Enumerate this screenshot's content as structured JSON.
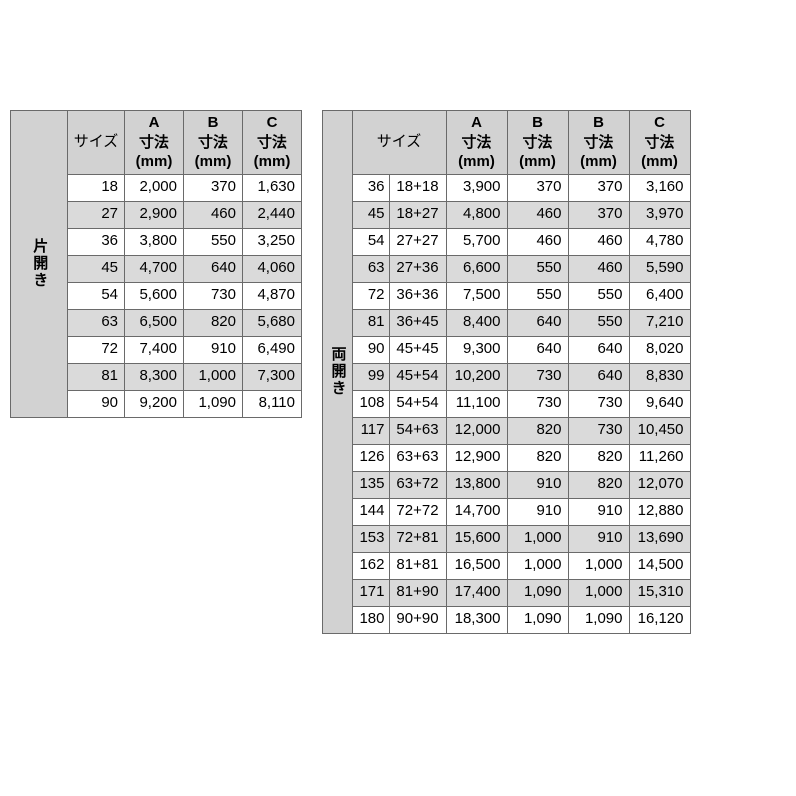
{
  "label_left": "片開き",
  "label_right": "両開き",
  "headers": {
    "size": "サイズ",
    "a": "A 寸法 (mm)",
    "b": "B 寸法 (mm)",
    "c": "C 寸法 (mm)"
  },
  "colors": {
    "border": "#6a6a6a",
    "header_bg": "#d2d2d2",
    "row_odd_bg": "#ffffff",
    "row_even_bg": "#dadada",
    "page_bg": "#ffffff",
    "text_color": "#222222"
  },
  "font": {
    "family": "Hiragino Kaku Gothic Pro / Meiryo",
    "size_pt": 11
  },
  "left_table": {
    "columns": [
      "サイズ",
      "A 寸法 (mm)",
      "B 寸法 (mm)",
      "C 寸法 (mm)"
    ],
    "rows": [
      {
        "size": "18",
        "a": "2,000",
        "b": "370",
        "c": "1,630"
      },
      {
        "size": "27",
        "a": "2,900",
        "b": "460",
        "c": "2,440"
      },
      {
        "size": "36",
        "a": "3,800",
        "b": "550",
        "c": "3,250"
      },
      {
        "size": "45",
        "a": "4,700",
        "b": "640",
        "c": "4,060"
      },
      {
        "size": "54",
        "a": "5,600",
        "b": "730",
        "c": "4,870"
      },
      {
        "size": "63",
        "a": "6,500",
        "b": "820",
        "c": "5,680"
      },
      {
        "size": "72",
        "a": "7,400",
        "b": "910",
        "c": "6,490"
      },
      {
        "size": "81",
        "a": "8,300",
        "b": "1,000",
        "c": "7,300"
      },
      {
        "size": "90",
        "a": "9,200",
        "b": "1,090",
        "c": "8,110"
      }
    ]
  },
  "right_table": {
    "columns": [
      "サイズ",
      "A 寸法 (mm)",
      "B 寸法 (mm)",
      "B 寸法 (mm)",
      "C 寸法 (mm)"
    ],
    "rows": [
      {
        "size": "36",
        "combo": "18+18",
        "a": "3,900",
        "b1": "370",
        "b2": "370",
        "c": "3,160"
      },
      {
        "size": "45",
        "combo": "18+27",
        "a": "4,800",
        "b1": "460",
        "b2": "370",
        "c": "3,970"
      },
      {
        "size": "54",
        "combo": "27+27",
        "a": "5,700",
        "b1": "460",
        "b2": "460",
        "c": "4,780"
      },
      {
        "size": "63",
        "combo": "27+36",
        "a": "6,600",
        "b1": "550",
        "b2": "460",
        "c": "5,590"
      },
      {
        "size": "72",
        "combo": "36+36",
        "a": "7,500",
        "b1": "550",
        "b2": "550",
        "c": "6,400"
      },
      {
        "size": "81",
        "combo": "36+45",
        "a": "8,400",
        "b1": "640",
        "b2": "550",
        "c": "7,210"
      },
      {
        "size": "90",
        "combo": "45+45",
        "a": "9,300",
        "b1": "640",
        "b2": "640",
        "c": "8,020"
      },
      {
        "size": "99",
        "combo": "45+54",
        "a": "10,200",
        "b1": "730",
        "b2": "640",
        "c": "8,830"
      },
      {
        "size": "108",
        "combo": "54+54",
        "a": "11,100",
        "b1": "730",
        "b2": "730",
        "c": "9,640"
      },
      {
        "size": "117",
        "combo": "54+63",
        "a": "12,000",
        "b1": "820",
        "b2": "730",
        "c": "10,450"
      },
      {
        "size": "126",
        "combo": "63+63",
        "a": "12,900",
        "b1": "820",
        "b2": "820",
        "c": "11,260"
      },
      {
        "size": "135",
        "combo": "63+72",
        "a": "13,800",
        "b1": "910",
        "b2": "820",
        "c": "12,070"
      },
      {
        "size": "144",
        "combo": "72+72",
        "a": "14,700",
        "b1": "910",
        "b2": "910",
        "c": "12,880"
      },
      {
        "size": "153",
        "combo": "72+81",
        "a": "15,600",
        "b1": "1,000",
        "b2": "910",
        "c": "13,690"
      },
      {
        "size": "162",
        "combo": "81+81",
        "a": "16,500",
        "b1": "1,000",
        "b2": "1,000",
        "c": "14,500"
      },
      {
        "size": "171",
        "combo": "81+90",
        "a": "17,400",
        "b1": "1,090",
        "b2": "1,000",
        "c": "15,310"
      },
      {
        "size": "180",
        "combo": "90+90",
        "a": "18,300",
        "b1": "1,090",
        "b2": "1,090",
        "c": "16,120"
      }
    ]
  }
}
